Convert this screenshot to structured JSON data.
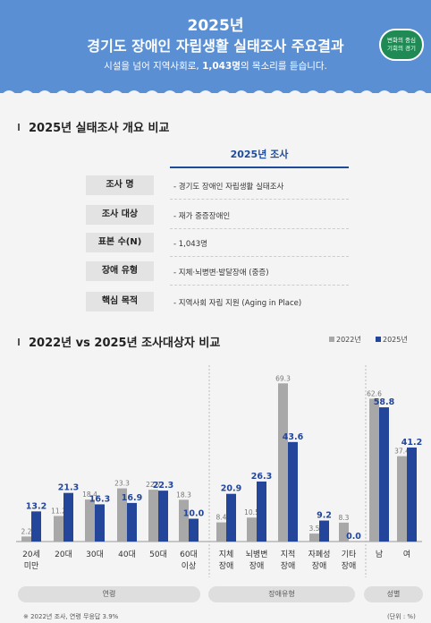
{
  "header": {
    "year": "2025년",
    "title": "경기도 장애인 자립생활 실태조사 주요결과",
    "subtitle_pre": "시설을 넘어 지역사회로, ",
    "subtitle_bold": "1,043명",
    "subtitle_post": "의 목소리를 듣습니다.",
    "badge_line1": "변화의 중심",
    "badge_line2": "기회의 경기"
  },
  "overview": {
    "section_title": "2025년 실태조사 개요 비교",
    "column_header": "2025년 조사",
    "rows": [
      {
        "label": "조사 명",
        "value": "-  경기도 장애인 자립생활 실태조사"
      },
      {
        "label": "조사 대상",
        "value": "-  재가 중증장애인"
      },
      {
        "label": "표본 수(N)",
        "value": "-  1,043명"
      },
      {
        "label": "장애 유형",
        "value": "-  지체·뇌병변·발달장애 (중증)"
      },
      {
        "label": "핵심 목적",
        "value": "-  지역사회 자립 지원 (Aging in Place)"
      }
    ]
  },
  "comparison": {
    "section_title": "2022년 vs 2025년 조사대상자 비교",
    "legend": [
      "2022년",
      "2025년"
    ],
    "group_labels": [
      "연령",
      "장애유형",
      "성별"
    ],
    "footnote": "※ 2022년 조사, 연령 무응답 3.9%",
    "unit": "(단위 : %)"
  },
  "colors": {
    "header": "#5b8fd4",
    "y2022": "#a8a8a8",
    "y2025": "#24469a"
  },
  "chart_data": {
    "type": "bar",
    "categories": [
      "20세\n미만",
      "20대",
      "30대",
      "40대",
      "50대",
      "60대\n이상",
      "지체\n장애",
      "뇌병변\n장애",
      "지적\n장애",
      "자폐성\n장애",
      "기타\n장애",
      "남",
      "여"
    ],
    "series": [
      {
        "name": "2022년",
        "values": [
          2.2,
          11.2,
          18.4,
          23.3,
          22.7,
          18.3,
          8.4,
          10.5,
          69.3,
          3.5,
          8.3,
          62.6,
          37.4
        ]
      },
      {
        "name": "2025년",
        "values": [
          13.2,
          21.3,
          16.3,
          16.9,
          22.3,
          10.0,
          20.9,
          26.3,
          43.6,
          9.2,
          0.0,
          58.8,
          41.2
        ]
      }
    ],
    "groups": [
      {
        "name": "연령",
        "count": 6
      },
      {
        "name": "장애유형",
        "count": 5
      },
      {
        "name": "성별",
        "count": 2
      }
    ],
    "ylim": [
      0,
      75
    ],
    "grid": false,
    "legend_position": "top-right"
  }
}
